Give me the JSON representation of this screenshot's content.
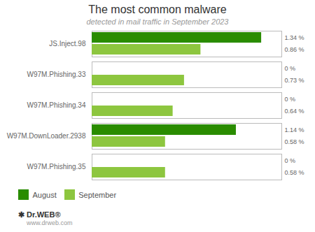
{
  "chart_data": {
    "type": "bar",
    "orientation": "horizontal",
    "title": "The most common malware",
    "subtitle": "detected in mail traffic in September 2023",
    "categories": [
      "JS.Inject.98",
      "W97M.Phishing.33",
      "W97M.Phishing.34",
      "W97M.DownLoader.2938",
      "W97M.Phishing.35"
    ],
    "series": [
      {
        "name": "August",
        "color": "#2a8c00",
        "values": [
          1.34,
          0.0,
          0.0,
          1.14,
          0.0
        ],
        "value_labels": [
          "1.34 %",
          "0 %",
          "0 %",
          "1.14 %",
          "0 %"
        ]
      },
      {
        "name": "September",
        "color": "#8dc63f",
        "values": [
          0.86,
          0.73,
          0.64,
          0.58,
          0.58
        ],
        "value_labels": [
          "0.86 %",
          "0.73 %",
          "0.64 %",
          "0.58 %",
          "0.58 %"
        ]
      }
    ],
    "xlim": [
      0,
      1.5
    ],
    "xticks": [],
    "tick_labels": "y",
    "data_labels": true,
    "legend": "bottom",
    "grid": false,
    "annotations": [
      "✱ Dr.WEB®",
      "www.drweb.com"
    ]
  }
}
